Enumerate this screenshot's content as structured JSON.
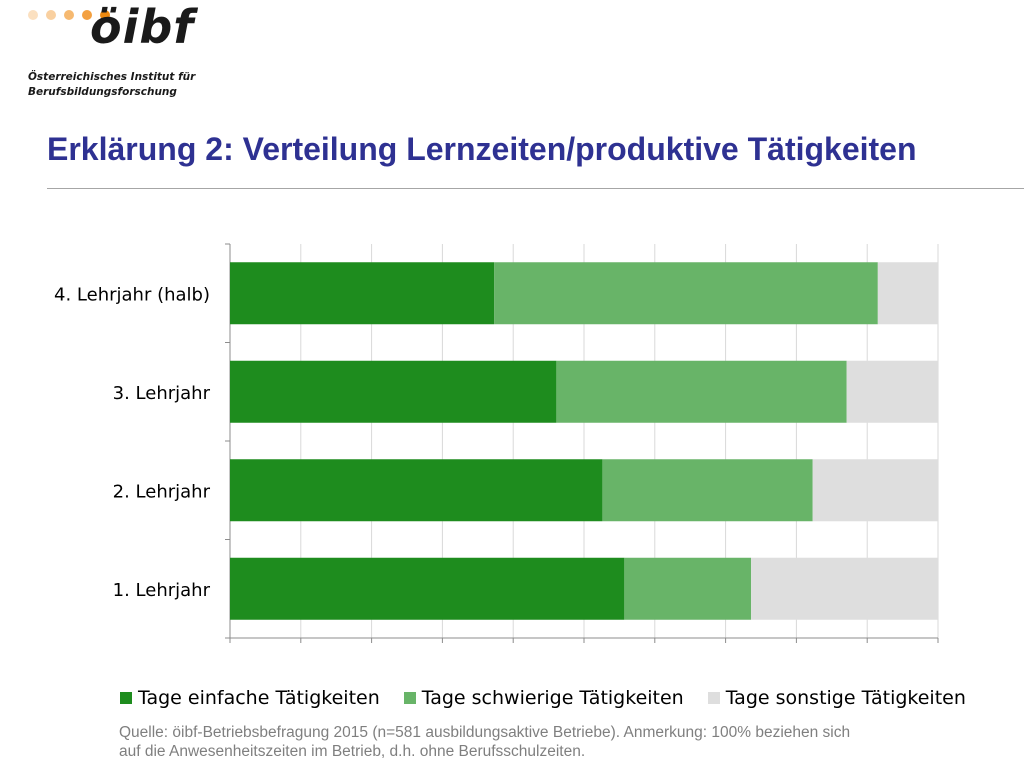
{
  "logo": {
    "wordmark": "öibf",
    "subtitle_line1": "Österreichisches Institut für",
    "subtitle_line2": "Berufsbildungsforschung",
    "dot_colors": [
      "#fbe0c0",
      "#f9d0a0",
      "#f6b970",
      "#f3a040",
      "#ee8a10"
    ]
  },
  "title": "Erklärung 2: Verteilung Lernzeiten/produktive Tätigkeiten",
  "chart_data": {
    "type": "bar",
    "orientation": "horizontal",
    "stacked": true,
    "categories": [
      "4. Lehrjahr (halb)",
      "3. Lehrjahr",
      "2. Lehrjahr",
      "1. Lehrjahr"
    ],
    "series": [
      {
        "name": "Tage einfache Tätigkeiten",
        "color": "#1e8c1e",
        "values": [
          37.3,
          46.1,
          52.6,
          55.7
        ]
      },
      {
        "name": "Tage schwierige Tätigkeiten",
        "color": "#68b468",
        "values": [
          54.2,
          41.0,
          29.7,
          17.9
        ]
      },
      {
        "name": "Tage sonstige Tätigkeiten",
        "color": "#dedede",
        "values": [
          8.5,
          12.9,
          17.7,
          26.4
        ]
      }
    ],
    "xlim": [
      0,
      100
    ],
    "xticks": [
      "0%",
      "10%",
      "20%",
      "30%",
      "40%",
      "50%",
      "60%",
      "70%",
      "80%",
      "90%",
      "100%"
    ],
    "grid": true,
    "legend_position": "bottom"
  },
  "footnote": {
    "line1": "Quelle: öibf-Betriebsbefragung 2015 (n=581 ausbildungsaktive Betriebe). Anmerkung: 100% beziehen sich",
    "line2": "auf die Anwesenheitszeiten im Betrieb, d.h. ohne Berufsschulzeiten."
  }
}
